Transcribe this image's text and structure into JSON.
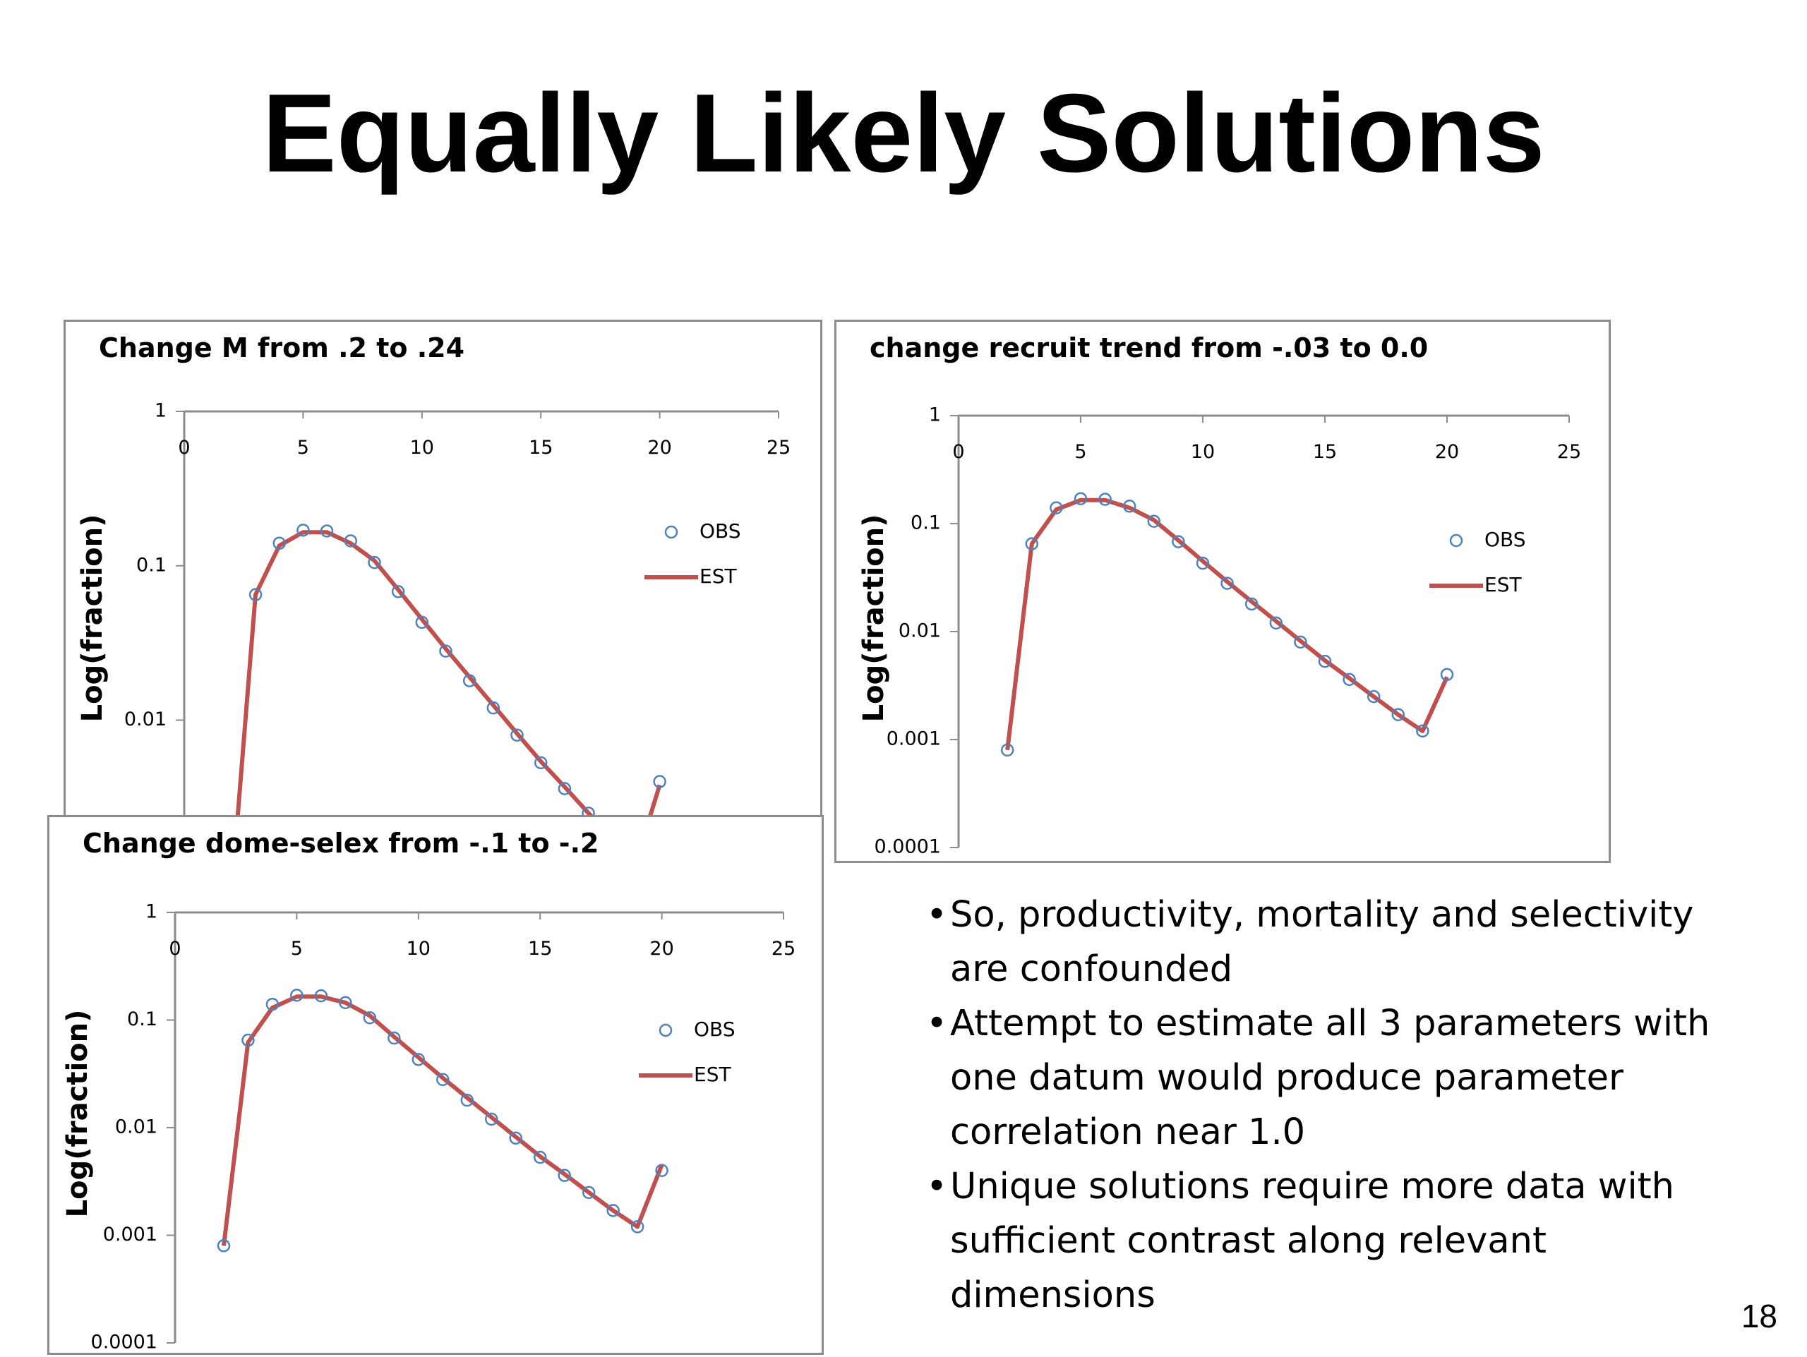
{
  "slide": {
    "title": "Equally Likely Solutions",
    "page_number": "18",
    "bullets": [
      "So, productivity, mortality and selectivity are confounded",
      "Attempt to estimate all 3 parameters with one datum would produce parameter correlation near 1.0",
      "Unique solutions require more data with sufficient contrast along relevant dimensions"
    ]
  },
  "colors": {
    "obs": "#4f81bd",
    "est": "#c0504d",
    "axis": "#8c8c8c"
  },
  "chart_data": [
    {
      "type": "line",
      "title": "Change M from .2 to .24",
      "ylabel": "Log(fraction)",
      "xlabel": "",
      "y_scale": "log",
      "xlim": [
        0,
        25
      ],
      "ylim": [
        0.0001,
        1
      ],
      "x_ticks": [
        "0",
        "5",
        "10",
        "15",
        "20",
        "25"
      ],
      "y_ticks": [
        "1",
        "0.1",
        "0.01",
        "0.001"
      ],
      "legend": "right",
      "series": [
        {
          "name": "OBS",
          "style": "open-circle",
          "x": [
            2,
            3,
            4,
            5,
            6,
            7,
            8,
            9,
            10,
            11,
            12,
            13,
            14,
            15,
            16,
            17,
            18,
            19,
            20
          ],
          "y": [
            0.0008,
            0.065,
            0.14,
            0.17,
            0.168,
            0.145,
            0.105,
            0.068,
            0.043,
            0.028,
            0.018,
            0.012,
            0.008,
            0.0053,
            0.0036,
            0.0025,
            0.0017,
            0.0012,
            0.004
          ]
        },
        {
          "name": "EST",
          "style": "line",
          "x": [
            2,
            3,
            4,
            5,
            6,
            7,
            8,
            9,
            10,
            11,
            12,
            13,
            14,
            15,
            16,
            17,
            18,
            19,
            20
          ],
          "y": [
            0.0008,
            0.065,
            0.135,
            0.165,
            0.165,
            0.14,
            0.108,
            0.07,
            0.045,
            0.029,
            0.019,
            0.0125,
            0.0082,
            0.0054,
            0.0037,
            0.0025,
            0.0017,
            0.0012,
            0.0038
          ]
        }
      ]
    },
    {
      "type": "line",
      "title": "change recruit trend from -.03 to 0.0",
      "ylabel": "Log(fraction)",
      "xlabel": "",
      "y_scale": "log",
      "xlim": [
        0,
        25
      ],
      "ylim": [
        0.0001,
        1
      ],
      "x_ticks": [
        "0",
        "5",
        "10",
        "15",
        "20",
        "25"
      ],
      "y_ticks": [
        "1",
        "0.1",
        "0.01",
        "0.001",
        "0.0001"
      ],
      "legend": "right",
      "series": [
        {
          "name": "OBS",
          "style": "open-circle",
          "x": [
            2,
            3,
            4,
            5,
            6,
            7,
            8,
            9,
            10,
            11,
            12,
            13,
            14,
            15,
            16,
            17,
            18,
            19,
            20
          ],
          "y": [
            0.0008,
            0.065,
            0.14,
            0.17,
            0.168,
            0.145,
            0.105,
            0.068,
            0.043,
            0.028,
            0.018,
            0.012,
            0.008,
            0.0053,
            0.0036,
            0.0025,
            0.0017,
            0.0012,
            0.004
          ]
        },
        {
          "name": "EST",
          "style": "line",
          "x": [
            2,
            3,
            4,
            5,
            6,
            7,
            8,
            9,
            10,
            11,
            12,
            13,
            14,
            15,
            16,
            17,
            18,
            19,
            20
          ],
          "y": [
            0.0008,
            0.065,
            0.135,
            0.165,
            0.165,
            0.14,
            0.108,
            0.07,
            0.045,
            0.029,
            0.019,
            0.0125,
            0.0082,
            0.0054,
            0.0037,
            0.0025,
            0.0017,
            0.0012,
            0.0038
          ]
        }
      ]
    },
    {
      "type": "line",
      "title": "Change dome-selex from -.1 to -.2",
      "ylabel": "Log(fraction)",
      "xlabel": "",
      "y_scale": "log",
      "xlim": [
        0,
        25
      ],
      "ylim": [
        0.0001,
        1
      ],
      "x_ticks": [
        "0",
        "5",
        "10",
        "15",
        "20",
        "25"
      ],
      "y_ticks": [
        "1",
        "0.1",
        "0.01",
        "0.001",
        "0.0001"
      ],
      "legend": "right",
      "series": [
        {
          "name": "OBS",
          "style": "open-circle",
          "x": [
            2,
            3,
            4,
            5,
            6,
            7,
            8,
            9,
            10,
            11,
            12,
            13,
            14,
            15,
            16,
            17,
            18,
            19,
            20
          ],
          "y": [
            0.0008,
            0.065,
            0.14,
            0.17,
            0.168,
            0.145,
            0.105,
            0.068,
            0.043,
            0.028,
            0.018,
            0.012,
            0.008,
            0.0053,
            0.0036,
            0.0025,
            0.0017,
            0.0012,
            0.004
          ]
        },
        {
          "name": "EST",
          "style": "line",
          "x": [
            2,
            3,
            4,
            5,
            6,
            7,
            8,
            9,
            10,
            11,
            12,
            13,
            14,
            15,
            16,
            17,
            18,
            19,
            20
          ],
          "y": [
            0.0008,
            0.062,
            0.13,
            0.165,
            0.165,
            0.145,
            0.11,
            0.07,
            0.045,
            0.029,
            0.019,
            0.0125,
            0.0082,
            0.0054,
            0.0037,
            0.0025,
            0.0017,
            0.0012,
            0.0045
          ]
        }
      ]
    }
  ]
}
